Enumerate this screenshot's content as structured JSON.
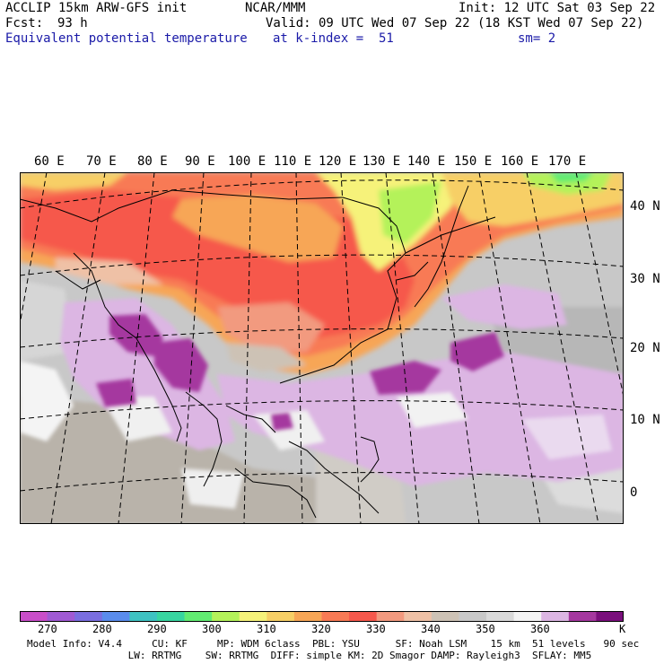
{
  "header": {
    "model": "ACCLIP 15km ARW-GFS init",
    "org": "NCAR/MMM",
    "init": "Init: 12 UTC Sat 03 Sep 22",
    "fcst_label": "Fcst:",
    "fcst_value": "93 h",
    "valid": "Valid: 09 UTC Wed 07 Sep 22 (18 KST Wed 07 Sep 22)",
    "field": "Equivalent potential temperature",
    "level": "at k-index =  51",
    "smoothing": "sm= 2"
  },
  "map": {
    "longitude_labels": [
      "60 E",
      "70 E",
      "80 E",
      "90 E",
      "100 E",
      "110 E",
      "120 E",
      "130 E",
      "140 E",
      "150 E",
      "160 E",
      "170 E"
    ],
    "latitude_labels": [
      "40 N",
      "30 N",
      "20 N",
      "10 N",
      "0"
    ]
  },
  "colorbar": {
    "unit": "K",
    "tick_labels": [
      "270",
      "280",
      "290",
      "300",
      "310",
      "320",
      "330",
      "340",
      "350",
      "360"
    ],
    "colors": [
      "#c94ec9",
      "#a05ad4",
      "#7a6ee0",
      "#5a8cec",
      "#3ec2c2",
      "#38d6a0",
      "#62ec72",
      "#b4f25a",
      "#f6f27a",
      "#f7cf66",
      "#f7a656",
      "#f87a55",
      "#f6584c",
      "#f29a7f",
      "#efc1a6",
      "#cdc2b5",
      "#c8c8c8",
      "#dadada",
      "#f4f4f4",
      "#dcb6e3",
      "#a5389f",
      "#7a0f7c"
    ]
  },
  "footer": {
    "line1": [
      "Model Info: V4.4",
      "CU: KF",
      "MP: WDM 6class",
      "PBL: YSU",
      "SF: Noah LSM",
      "15 km",
      "51 levels",
      "90 sec"
    ],
    "line2": [
      "LW: RRTMG",
      "SW: RRTMG",
      "DIFF: simple",
      "KM: 2D Smagor",
      "DAMP: Rayleigh3",
      "SFLAY: MM5"
    ]
  }
}
